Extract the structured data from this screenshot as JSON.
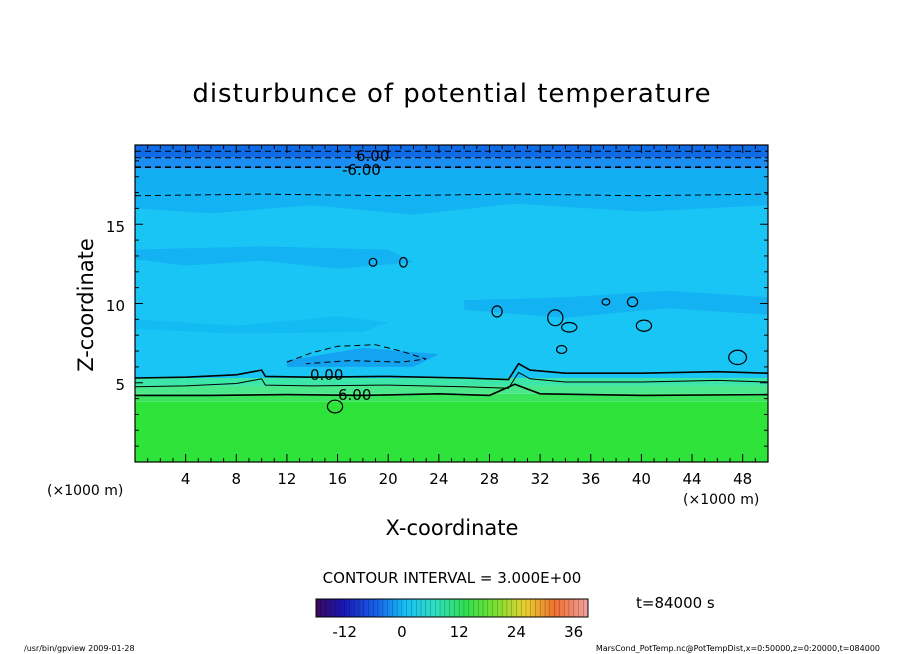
{
  "chart_data": {
    "type": "heatmap",
    "title": "disturbunce of potential temperature",
    "xlabel": "X-coordinate",
    "ylabel": "Z-coordinate",
    "x_unit": "(×1000 m)",
    "x_unit_right": "(×1000 m)",
    "xlim": [
      0,
      50
    ],
    "ylim": [
      0,
      20
    ],
    "x_ticks": [
      "4",
      "8",
      "12",
      "16",
      "20",
      "24",
      "28",
      "32",
      "36",
      "40",
      "44",
      "48"
    ],
    "y_ticks": [
      "5",
      "10",
      "15"
    ],
    "contour_labels": [
      "6.00",
      "-6.00",
      "0.00",
      "6.00"
    ],
    "contour_interval_text": "CONTOUR INTERVAL = 3.000E+00",
    "time_text": "t=84000 s",
    "colorbar": {
      "min": -18,
      "max": 39,
      "tick_labels": [
        "-12",
        "0",
        "12",
        "24",
        "36"
      ]
    },
    "footer_left": "/usr/bin/gpview 2009-01-28",
    "footer_right": "MarsCond_PotTemp.nc@PotTempDist,x=0:50000,z=0:20000,t=084000",
    "layers": [
      {
        "z_from": 0,
        "z_to": 3.8,
        "value": 11
      },
      {
        "z_from": 3.8,
        "z_to": 4.3,
        "value": 9
      },
      {
        "z_from": 4.3,
        "z_to": 4.8,
        "value": 6
      },
      {
        "z_from": 4.8,
        "z_to": 5.3,
        "value": 3
      },
      {
        "z_from": 5.3,
        "z_to": 17.0,
        "value": -1
      },
      {
        "z_from": 17.0,
        "z_to": 18.5,
        "value": -4
      },
      {
        "z_from": 18.5,
        "z_to": 19.2,
        "value": -6
      },
      {
        "z_from": 19.2,
        "z_to": 20.0,
        "value": -9
      }
    ],
    "colors": {
      "value_-9": "#0f6be6",
      "value_-6": "#1b8ef3",
      "value_-4": "#12aef2",
      "value_-1": "#19c5f5",
      "value_3": "#3be6a8",
      "value_6": "#4ae88a",
      "value_9": "#3ae45c",
      "value_11": "#2ee33a"
    }
  }
}
